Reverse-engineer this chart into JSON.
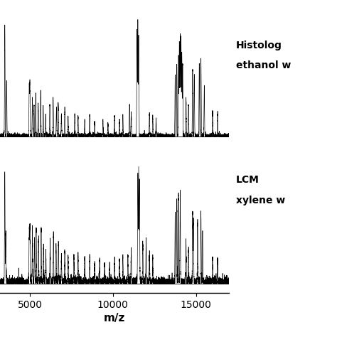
{
  "xlabel": "m/z",
  "xlim": [
    3200,
    17000
  ],
  "xticks": [
    5000,
    10000,
    15000
  ],
  "xticklabels": [
    "5000",
    "10000",
    "15000"
  ],
  "background_color": "#ffffff",
  "line_color": "#000000",
  "label_top_line1": "Histolog",
  "label_top_line2": "ethanol w",
  "label_bottom_line1": "LCM",
  "label_bottom_line2": "xylene w",
  "label_fontsize": 10,
  "tick_fontsize": 10,
  "xlabel_fontsize": 11
}
